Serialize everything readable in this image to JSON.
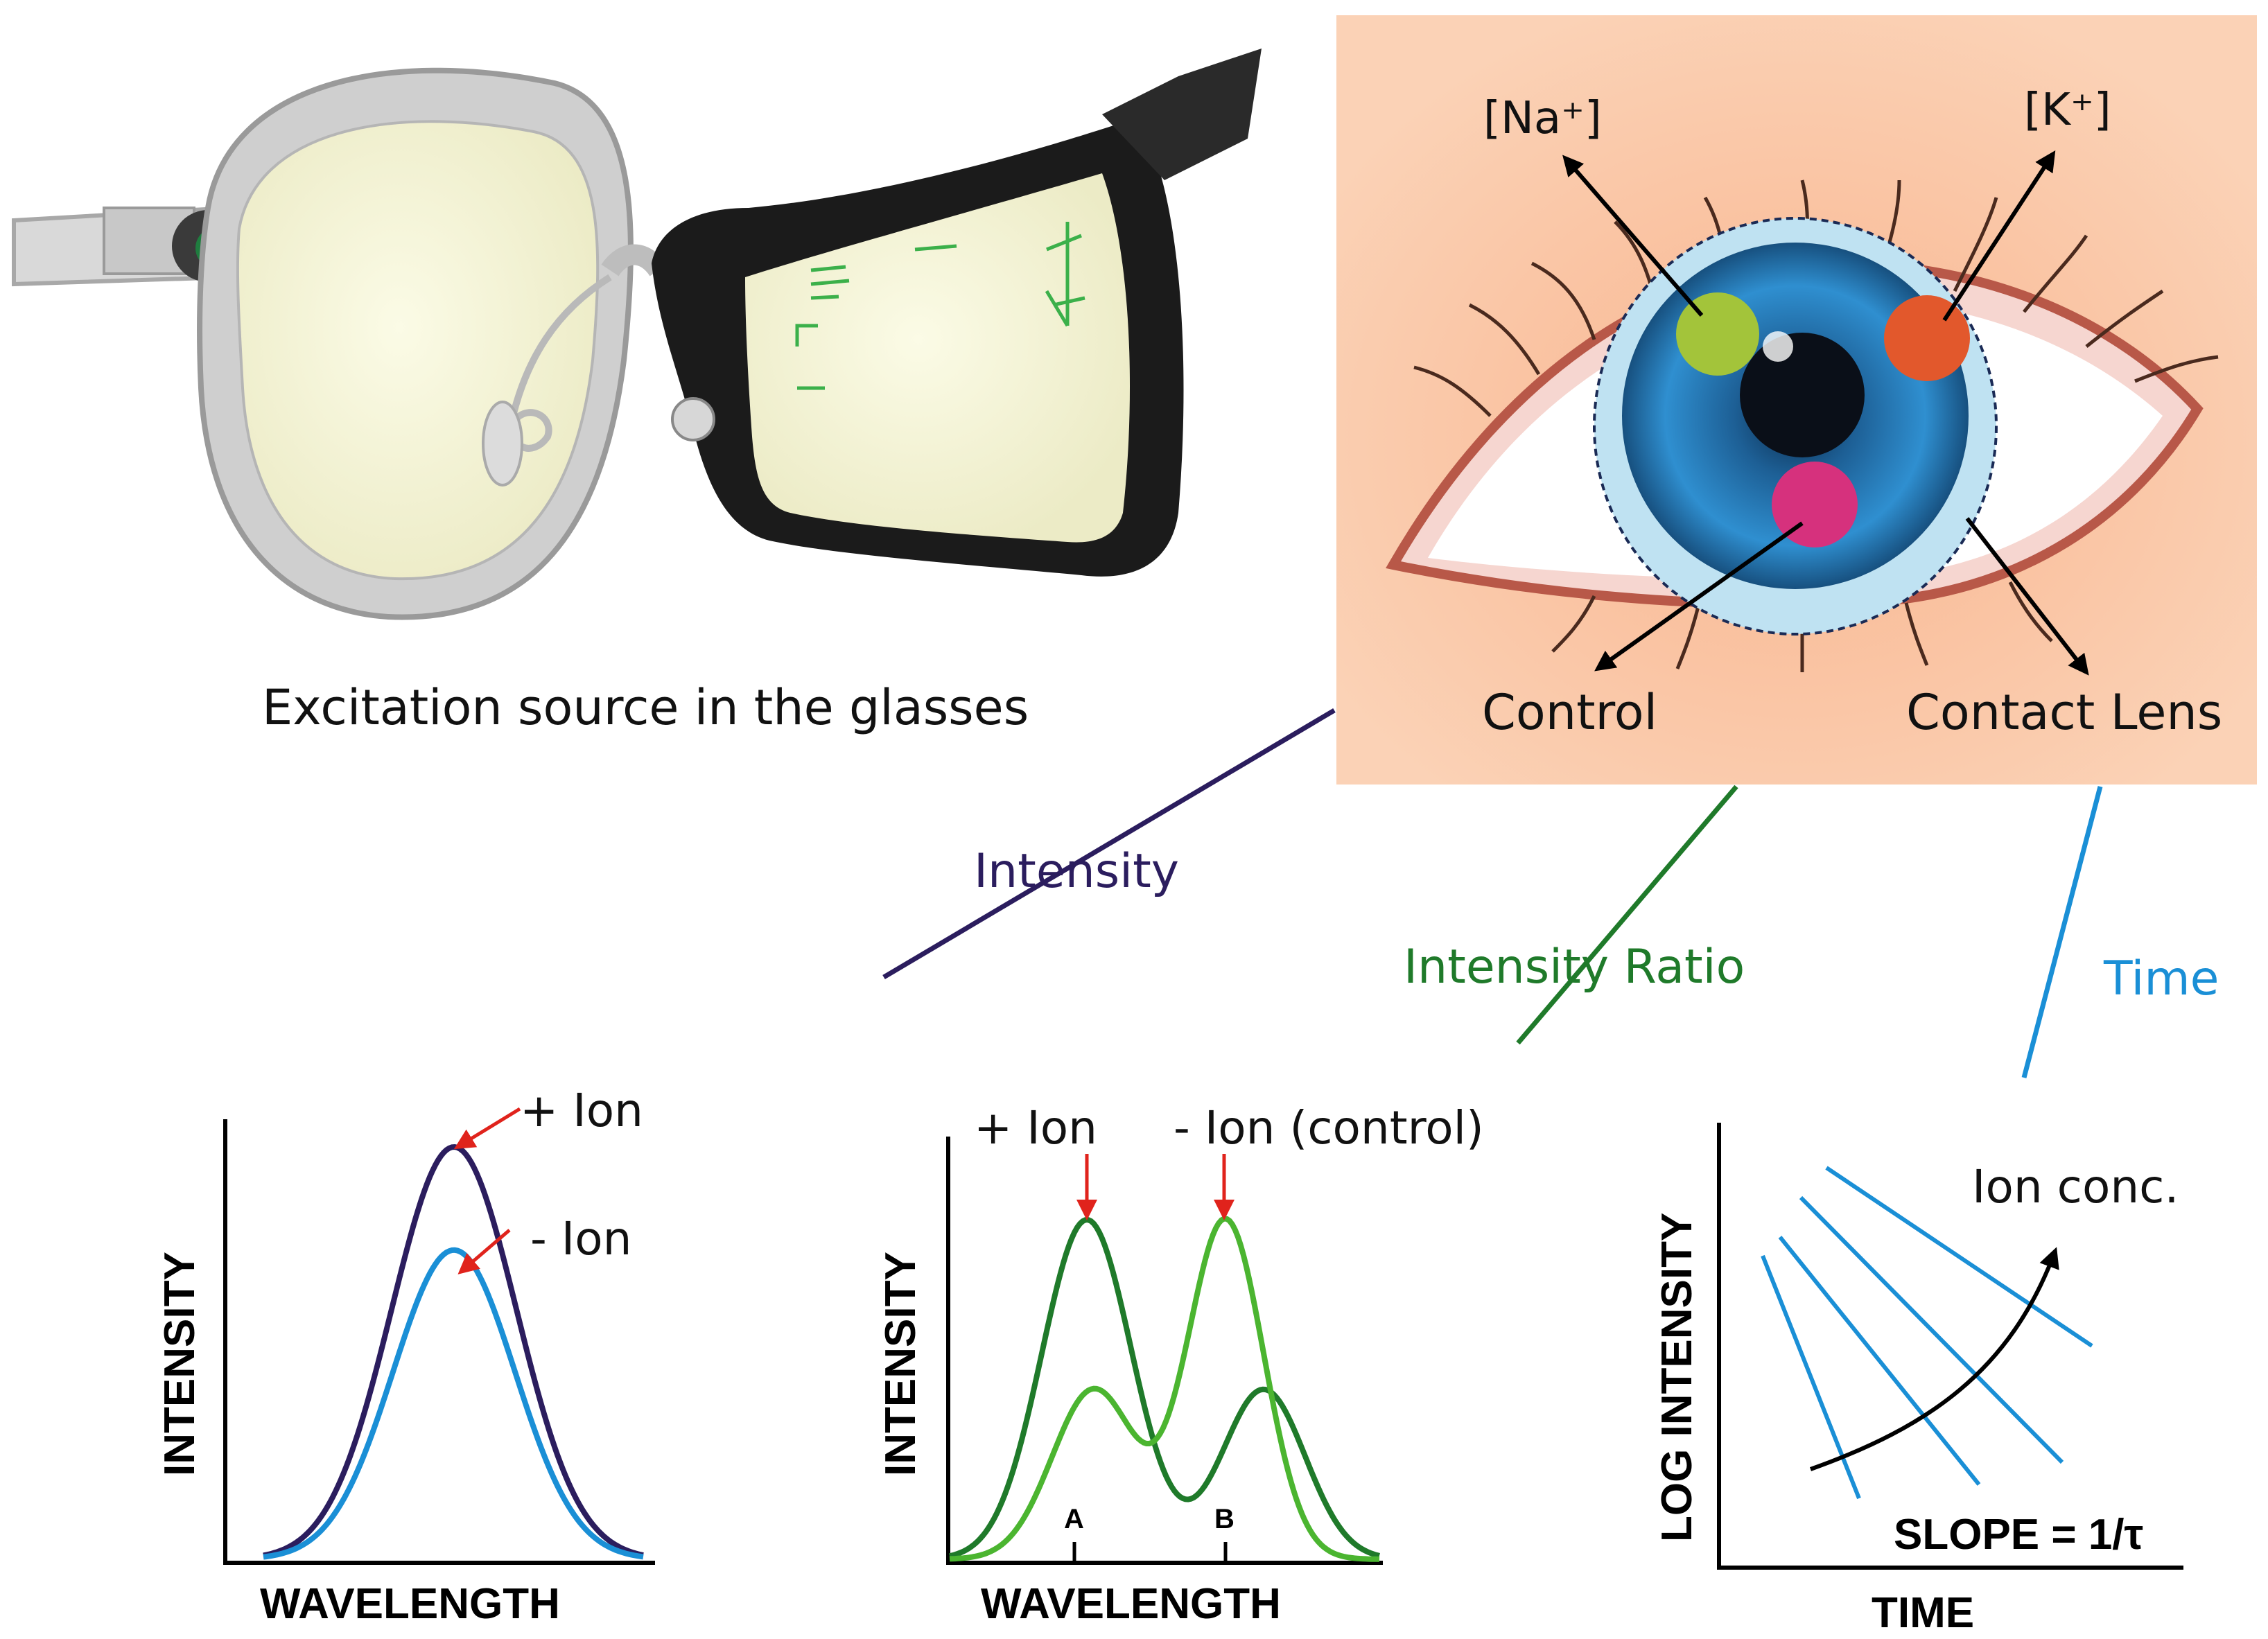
{
  "glasses_caption": "Excitation source in the glasses",
  "eye_panel": {
    "labels": {
      "sodium": "[Na⁺]",
      "potassium": "[K⁺]",
      "control": "Control",
      "contact_lens": "Contact Lens"
    },
    "spot_colors": {
      "sodium": "#a3c43a",
      "potassium": "#e2582c",
      "control": "#d6317d"
    }
  },
  "methods": {
    "intensity": "Intensity",
    "intensity_ratio": "Intensity Ratio",
    "time": "Time",
    "colors": {
      "intensity": "#2b1d5e",
      "intensity_ratio": "#1f7a2a",
      "time": "#1a8fd6"
    }
  },
  "chart1": {
    "ylabel": "INTENSITY",
    "xlabel": "WAVELENGTH",
    "plus_label": "+ Ion",
    "minus_label": "-  Ion"
  },
  "chart2": {
    "ylabel": "INTENSITY",
    "xlabel": "WAVELENGTH",
    "plus_label": "+ Ion",
    "minus_label": "-  Ion (control)",
    "tick_a": "A",
    "tick_b": "B"
  },
  "chart3": {
    "ylabel": "LOG INTENSITY",
    "xlabel": "TIME",
    "ion_label": "Ion conc.",
    "slope_label": "SLOPE = 1/τ"
  },
  "chart_data": [
    {
      "type": "line",
      "xlabel": "WAVELENGTH",
      "ylabel": "INTENSITY",
      "series": [
        {
          "name": "+ Ion",
          "peak": 1.0,
          "color": "#2b1d5e"
        },
        {
          "name": "- Ion",
          "peak": 0.75,
          "color": "#1a8fd6"
        }
      ]
    },
    {
      "type": "line",
      "xlabel": "WAVELENGTH",
      "ylabel": "INTENSITY",
      "categories": [
        "A",
        "B"
      ],
      "series": [
        {
          "name": "+ Ion",
          "peaks": [
            1.0,
            0.5
          ],
          "color": "#1f7a2a"
        },
        {
          "name": "- Ion (control)",
          "peaks": [
            0.5,
            1.0
          ],
          "color": "#4bb530"
        }
      ]
    },
    {
      "type": "line",
      "xlabel": "TIME",
      "ylabel": "LOG INTENSITY",
      "lines": 4,
      "color": "#1a8fd6"
    }
  ]
}
